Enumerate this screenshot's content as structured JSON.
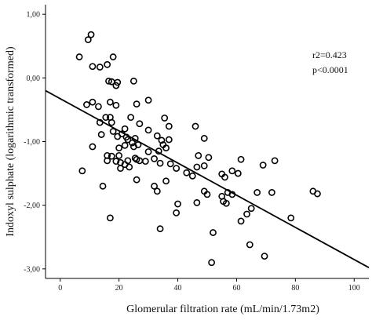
{
  "chart_data": {
    "type": "scatter",
    "title": "",
    "xlabel": "Glomerular filtration rate (mL/min/1.73m2)",
    "ylabel": "Indoxyl sulphate (logarithmic transformed)",
    "xlim": [
      -5,
      105
    ],
    "ylim": [
      -3.15,
      1.15
    ],
    "x_ticks": [
      0,
      20,
      40,
      60,
      80,
      100
    ],
    "x_tick_labels": [
      "0",
      "20",
      "40",
      "60",
      "80",
      "100"
    ],
    "y_ticks": [
      1,
      0,
      -1,
      -2,
      -3
    ],
    "y_tick_labels": [
      "1,00",
      "0,00",
      "-1,00",
      "-2,00",
      "-3,00"
    ],
    "grid": false,
    "marker": "open-circle",
    "annotations": [
      "r2=0.423",
      "p<0.0001"
    ],
    "fit_line": {
      "x": [
        -5,
        105
      ],
      "y": [
        -0.2,
        -2.98
      ]
    },
    "points": {
      "x": [
        6.5,
        9.5,
        10.5,
        11,
        13.5,
        16,
        18,
        16.5,
        17.5,
        19,
        19.5,
        25,
        9,
        11,
        13,
        17,
        19,
        26,
        13.5,
        15.5,
        17,
        17.5,
        24,
        27,
        30,
        21,
        22,
        23,
        25.5,
        14,
        18,
        19.5,
        22.5,
        24.5,
        30,
        33,
        34.5,
        35.5,
        37,
        37,
        11,
        16,
        20,
        20,
        22,
        25,
        26.5,
        30,
        33.5,
        35,
        36,
        46,
        49,
        16,
        17.5,
        19,
        20.5,
        23,
        25.5,
        26,
        27,
        29,
        32,
        34,
        37.5,
        39.5,
        43,
        45,
        46.5,
        47,
        49,
        50.5,
        55,
        56,
        58.5,
        60.5,
        61.5,
        69,
        73,
        7.5,
        14.5,
        20.5,
        22,
        23.5,
        26,
        32,
        36,
        33,
        40,
        39.5,
        34,
        17,
        46.5,
        49,
        50,
        55,
        57,
        55.5,
        56.5,
        58.5,
        65,
        63.5,
        67,
        72,
        78.5,
        86,
        87.5,
        61.5,
        52,
        64.5,
        69.5,
        51.5
      ],
      "y": [
        0.33,
        0.6,
        0.68,
        0.18,
        0.17,
        0.21,
        0.33,
        -0.05,
        -0.06,
        -0.12,
        -0.07,
        -0.05,
        -0.42,
        -0.38,
        -0.45,
        -0.38,
        -0.43,
        -0.41,
        -0.7,
        -0.62,
        -0.62,
        -0.7,
        -0.62,
        -0.72,
        -0.35,
        -0.88,
        -0.8,
        -0.97,
        -0.95,
        -0.89,
        -0.84,
        -0.92,
        -0.93,
        -1.02,
        -0.82,
        -0.91,
        -0.98,
        -0.63,
        -0.97,
        -0.76,
        -1.08,
        -1.22,
        -1.22,
        -1.1,
        -1.06,
        -1.08,
        -1.05,
        -1.16,
        -1.15,
        -1.05,
        -1.1,
        -0.76,
        -0.95,
        -1.3,
        -1.23,
        -1.31,
        -1.33,
        -1.3,
        -1.26,
        -1.28,
        -1.3,
        -1.31,
        -1.27,
        -1.34,
        -1.35,
        -1.42,
        -1.49,
        -1.54,
        -1.4,
        -1.22,
        -1.38,
        -1.25,
        -1.51,
        -1.56,
        -1.46,
        -1.5,
        -1.28,
        -1.37,
        -1.3,
        -1.46,
        -1.7,
        -1.42,
        -1.36,
        -1.4,
        -1.6,
        -1.7,
        -1.62,
        -1.78,
        -1.98,
        -2.12,
        -2.37,
        -2.2,
        -1.96,
        -1.78,
        -1.83,
        -1.86,
        -1.8,
        -1.94,
        -1.97,
        -1.83,
        -2.05,
        -2.14,
        -1.8,
        -1.8,
        -2.2,
        -1.78,
        -1.82,
        -2.25,
        -2.43,
        -2.62,
        -2.8,
        -2.9
      ]
    }
  }
}
